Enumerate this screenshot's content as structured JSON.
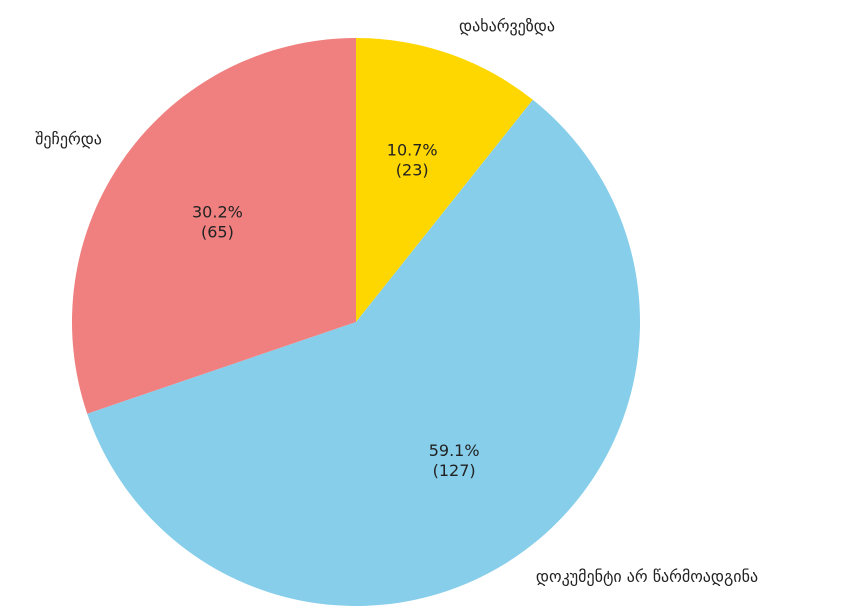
{
  "chart_data": {
    "type": "pie",
    "categories": [
      "დახარვეზდა",
      "დოკუმენტი არ წარმოადგინა",
      "შეჩერდა"
    ],
    "values": [
      23,
      127,
      65
    ],
    "percent_labels": [
      "10.7%",
      "59.1%",
      "30.2%"
    ],
    "value_labels": [
      "(23)",
      "(127)",
      "(65)"
    ],
    "colors": [
      "#ffd700",
      "#87ceeb",
      "#f08080"
    ],
    "direction": "clockwise",
    "start": "top"
  }
}
